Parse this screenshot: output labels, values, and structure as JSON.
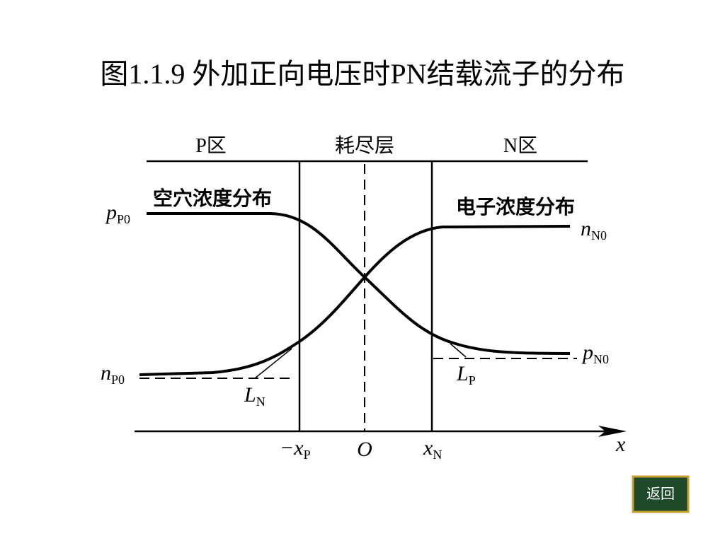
{
  "title": "图1.1.9 外加正向电压时PN结载流子的分布",
  "regions": [
    "P区",
    "耗尽层",
    "N区"
  ],
  "curve_labels": [
    "空穴浓度分布",
    "电子浓度分布"
  ],
  "levels": [
    {
      "base": "p",
      "sub": "P0"
    },
    {
      "base": "n",
      "sub": "N0"
    },
    {
      "base": "n",
      "sub": "P0"
    },
    {
      "base": "p",
      "sub": "N0"
    }
  ],
  "diffusion_lengths": [
    {
      "base": "L",
      "sub": "N"
    },
    {
      "base": "L",
      "sub": "P"
    }
  ],
  "axis_labels": [
    {
      "base": "−x",
      "sub": "P"
    },
    {
      "base": "O"
    },
    {
      "base": "x",
      "sub": "N"
    },
    {
      "base": "x"
    }
  ],
  "button": "返回"
}
